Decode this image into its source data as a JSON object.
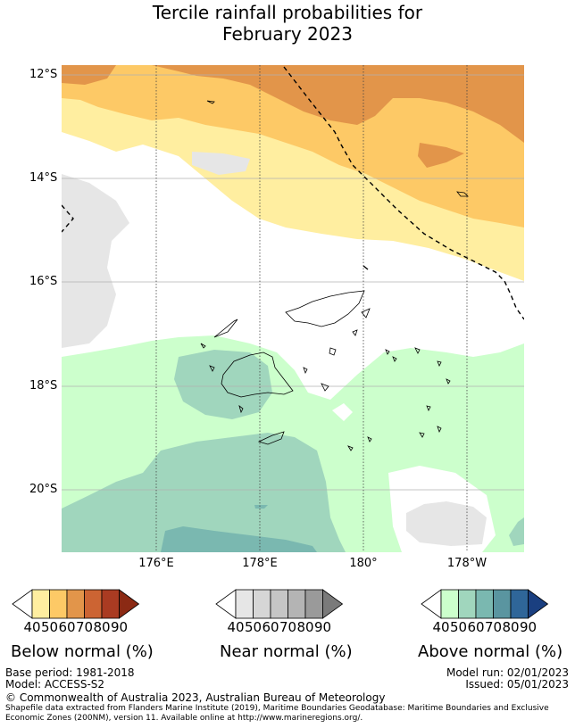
{
  "title_line1": "Tercile rainfall probabilities for",
  "title_line2": "February 2023",
  "lat_labels": [
    "12°S",
    "14°S",
    "16°S",
    "18°S",
    "20°S"
  ],
  "lon_labels": [
    "176°E",
    "178°E",
    "180°",
    "178°W"
  ],
  "legends": [
    {
      "title": "Below normal (%)",
      "ticks": [
        "40",
        "50",
        "60",
        "70",
        "80",
        "90"
      ],
      "colors": [
        "#ffeea0",
        "#fdc966",
        "#e2954a",
        "#cc6433",
        "#aa3b22",
        "#8b2a14"
      ]
    },
    {
      "title": "Near normal (%)",
      "ticks": [
        "40",
        "50",
        "60",
        "70",
        "80",
        "90"
      ],
      "colors": [
        "#e6e6e6",
        "#d6d6d6",
        "#c5c5c5",
        "#b4b4b4",
        "#9a9a9a",
        "#7a7a7a"
      ]
    },
    {
      "title": "Above normal (%)",
      "ticks": [
        "40",
        "50",
        "60",
        "70",
        "80",
        "90"
      ],
      "colors": [
        "#ccffcc",
        "#a0d6bd",
        "#7ab8b0",
        "#5a95a0",
        "#2f6699",
        "#1a3f80"
      ]
    }
  ],
  "info": {
    "base_period": "Base period: 1981-2018",
    "model": "Model: ACCESS-S2",
    "model_run": "Model run: 02/01/2023",
    "issued": "Issued: 05/01/2023",
    "copyright": "© Commonwealth of Australia 2023, Australian Bureau of Meteorology",
    "shapefile_1": "Shapefile data extracted from Flanders Marine Institute (2019), Maritime Boundaries Geodatabase: Maritime Boundaries and Exclusive",
    "shapefile_2": "Economic Zones (200NM), version 11. Available online at http://www.marineregions.org/."
  }
}
